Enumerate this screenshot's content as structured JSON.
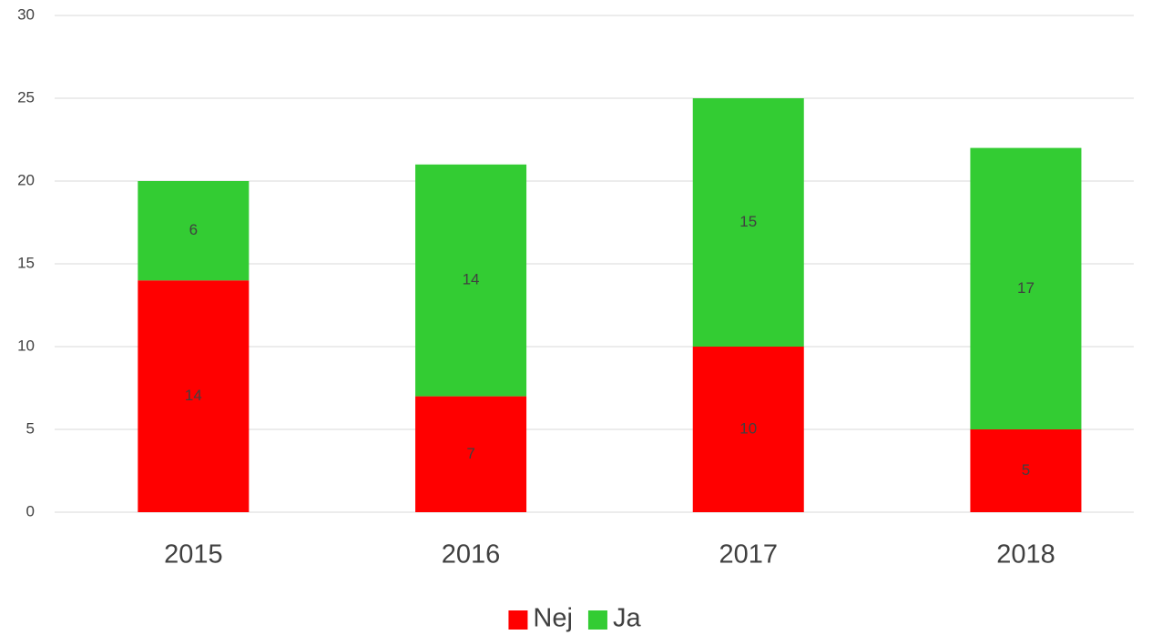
{
  "chart_data": {
    "type": "bar",
    "stacked": true,
    "categories": [
      "2015",
      "2016",
      "2017",
      "2018"
    ],
    "series": [
      {
        "name": "Nej",
        "color": "#ff0000",
        "values": [
          14,
          7,
          10,
          5
        ]
      },
      {
        "name": "Ja",
        "color": "#33cc33",
        "values": [
          6,
          14,
          15,
          17
        ]
      }
    ],
    "ylim": [
      0,
      30
    ],
    "yticks": [
      0,
      5,
      10,
      15,
      20,
      25,
      30
    ],
    "grid": true,
    "legend": "bottom"
  }
}
